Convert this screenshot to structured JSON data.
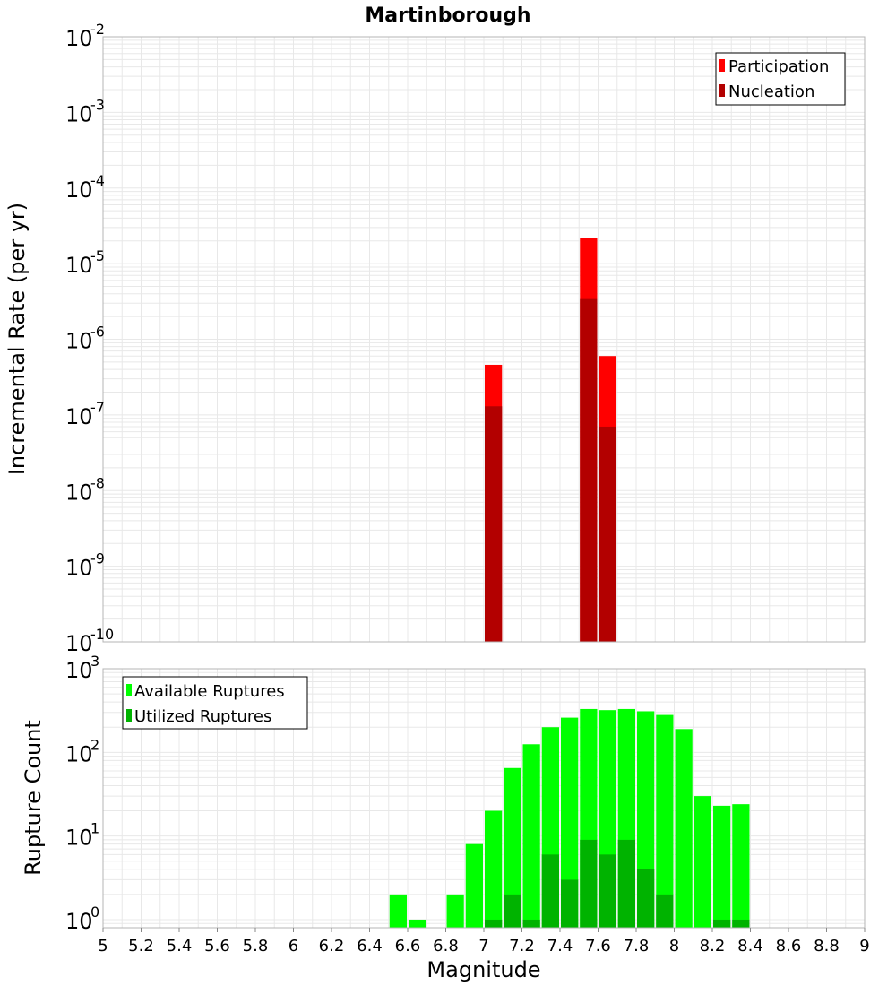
{
  "chart_data": [
    {
      "type": "bar",
      "title": "Martinborough",
      "xlabel": "",
      "ylabel": "Incremental Rate (per yr)",
      "yscale": "log",
      "ylim": [
        1e-10,
        0.01
      ],
      "xlim": [
        5,
        9
      ],
      "bin_width": 0.1,
      "grid": true,
      "legend_position": "top-right",
      "y_ticks": [
        {
          "base": "10",
          "exp": "-10"
        },
        {
          "base": "10",
          "exp": "-9"
        },
        {
          "base": "10",
          "exp": "-8"
        },
        {
          "base": "10",
          "exp": "-7"
        },
        {
          "base": "10",
          "exp": "-6"
        },
        {
          "base": "10",
          "exp": "-5"
        },
        {
          "base": "10",
          "exp": "-4"
        },
        {
          "base": "10",
          "exp": "-3"
        },
        {
          "base": "10",
          "exp": "-2"
        }
      ],
      "series": [
        {
          "name": "Participation",
          "color": "#ff0000",
          "x": [
            7.05,
            7.55,
            7.65
          ],
          "values": [
            4.6e-07,
            2.2e-05,
            6e-07
          ]
        },
        {
          "name": "Nucleation",
          "color": "#b30000",
          "x": [
            7.05,
            7.55,
            7.65
          ],
          "values": [
            1.3e-07,
            3.4e-06,
            7e-08
          ]
        }
      ]
    },
    {
      "type": "bar",
      "xlabel": "Magnitude",
      "ylabel": "Rupture Count",
      "yscale": "log",
      "ylim": [
        0.8,
        1000
      ],
      "xlim": [
        5,
        9
      ],
      "bin_width": 0.1,
      "grid": true,
      "legend_position": "top-left",
      "x_ticks": [
        "5",
        "5.2",
        "5.4",
        "5.6",
        "5.8",
        "6",
        "6.2",
        "6.4",
        "6.6",
        "6.8",
        "7",
        "7.2",
        "7.4",
        "7.6",
        "7.8",
        "8",
        "8.2",
        "8.4",
        "8.6",
        "8.8",
        "9"
      ],
      "y_ticks": [
        {
          "base": "10",
          "exp": "0"
        },
        {
          "base": "10",
          "exp": "1"
        },
        {
          "base": "10",
          "exp": "2"
        },
        {
          "base": "10",
          "exp": "3"
        }
      ],
      "series": [
        {
          "name": "Available Ruptures",
          "color": "#00ff00",
          "x": [
            6.55,
            6.65,
            6.85,
            6.95,
            7.05,
            7.15,
            7.25,
            7.35,
            7.45,
            7.55,
            7.65,
            7.75,
            7.85,
            7.95,
            8.05,
            8.15,
            8.25,
            8.35
          ],
          "values": [
            2,
            1,
            2,
            8,
            20,
            65,
            125,
            200,
            260,
            330,
            320,
            330,
            310,
            280,
            190,
            30,
            23,
            24
          ]
        },
        {
          "name": "Utilized Ruptures",
          "color": "#00b300",
          "x": [
            7.05,
            7.15,
            7.25,
            7.35,
            7.45,
            7.55,
            7.65,
            7.75,
            7.85,
            7.95,
            8.25,
            8.35
          ],
          "values": [
            1,
            2,
            1,
            6,
            3,
            9,
            6,
            9,
            4,
            2,
            1,
            1
          ]
        }
      ]
    }
  ]
}
